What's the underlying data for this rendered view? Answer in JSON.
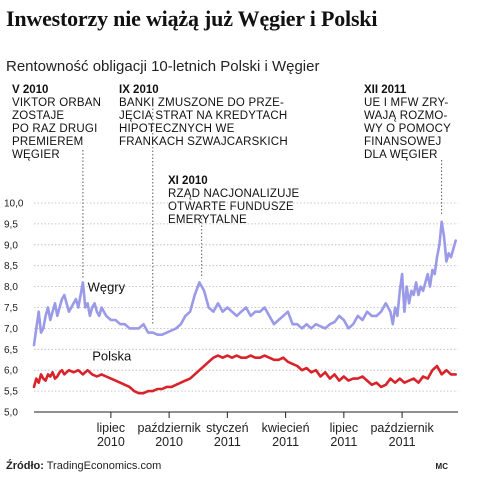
{
  "title": "Inwestorzy nie wiążą już Węgier i Polski",
  "subtitle": "Rentowność obligacji 10-letnich Polski i Węgier",
  "source": {
    "label": "Źródło:",
    "value": "TradingEconomics.com"
  },
  "credit": "MC",
  "annotations": [
    {
      "date": "V 2010",
      "lines": [
        "VIKTOR ORBAN",
        "ZOSTAJE",
        "PO RAZ DRUGI",
        "PREMIEREM",
        "WĘGIER"
      ],
      "x": 2010.38,
      "y": 8.1
    },
    {
      "date": "IX 2010",
      "lines": [
        "BANKI ZMUSZONE DO PRZE-",
        "JĘCIA STRAT NA KREDYTACH",
        "HIPOTECZNYCH WE",
        "FRANKACH SZWAJCARSKICH"
      ],
      "x": 2010.68,
      "y": 7.0
    },
    {
      "date": "XI 2010",
      "lines": [
        "RZĄD NACJONALIZUJE",
        "OTWARTE FUNDUSZE",
        "EMERYTALNE"
      ],
      "x": 2010.89,
      "y": 8.1
    },
    {
      "date": "XII 2011",
      "lines": [
        "UE I MFW ZRY-",
        "WAJĄ ROZMO-",
        "WY O POMOCY",
        "FINANSOWEJ",
        "DLA WĘGIER"
      ],
      "x": 2011.92,
      "y": 9.6
    }
  ],
  "chart_data": {
    "type": "line",
    "title": "Rentowność obligacji 10-letnich Polski i Węgier",
    "ylim": [
      5.0,
      10.0
    ],
    "yticks": [
      "5,0",
      "5,5",
      "6,0",
      "6,5",
      "7,0",
      "7,5",
      "8,0",
      "8,5",
      "9,0",
      "9,5",
      "10,0"
    ],
    "xlim": [
      2010.17,
      2011.99
    ],
    "xticks": [
      {
        "x": 2010.5,
        "label": [
          "lipiec",
          "2010"
        ]
      },
      {
        "x": 2010.75,
        "label": [
          "październik",
          "2010"
        ]
      },
      {
        "x": 2011.0,
        "label": [
          "styczeń",
          "2011"
        ]
      },
      {
        "x": 2011.25,
        "label": [
          "kwiecień",
          "2011"
        ]
      },
      {
        "x": 2011.5,
        "label": [
          "lipiec",
          "2011"
        ]
      },
      {
        "x": 2011.75,
        "label": [
          "październik",
          "2011"
        ]
      }
    ],
    "grid": "horizontal",
    "colors": {
      "hungary": "#9a9ae8",
      "poland": "#d9232a"
    },
    "series": [
      {
        "name": "Węgry",
        "x": [
          2010.17,
          2010.18,
          2010.19,
          2010.2,
          2010.21,
          2010.22,
          2010.23,
          2010.24,
          2010.25,
          2010.26,
          2010.27,
          2010.28,
          2010.29,
          2010.3,
          2010.31,
          2010.32,
          2010.33,
          2010.34,
          2010.35,
          2010.36,
          2010.37,
          2010.38,
          2010.39,
          2010.4,
          2010.41,
          2010.42,
          2010.43,
          2010.44,
          2010.45,
          2010.46,
          2010.47,
          2010.48,
          2010.5,
          2010.52,
          2010.54,
          2010.56,
          2010.58,
          2010.6,
          2010.62,
          2010.64,
          2010.66,
          2010.68,
          2010.7,
          2010.72,
          2010.74,
          2010.76,
          2010.78,
          2010.8,
          2010.82,
          2010.84,
          2010.86,
          2010.88,
          2010.9,
          2010.92,
          2010.94,
          2010.96,
          2010.98,
          2011.0,
          2011.02,
          2011.04,
          2011.06,
          2011.08,
          2011.1,
          2011.12,
          2011.14,
          2011.16,
          2011.18,
          2011.2,
          2011.22,
          2011.24,
          2011.26,
          2011.28,
          2011.3,
          2011.32,
          2011.34,
          2011.36,
          2011.38,
          2011.4,
          2011.42,
          2011.44,
          2011.46,
          2011.48,
          2011.5,
          2011.52,
          2011.54,
          2011.56,
          2011.58,
          2011.6,
          2011.62,
          2011.64,
          2011.66,
          2011.68,
          2011.7,
          2011.71,
          2011.72,
          2011.73,
          2011.74,
          2011.75,
          2011.76,
          2011.77,
          2011.78,
          2011.79,
          2011.8,
          2011.81,
          2011.82,
          2011.83,
          2011.84,
          2011.85,
          2011.86,
          2011.87,
          2011.88,
          2011.89,
          2011.9,
          2011.91,
          2011.92,
          2011.93,
          2011.94,
          2011.95,
          2011.96,
          2011.97,
          2011.98
        ],
        "values": [
          6.6,
          7.0,
          7.4,
          6.9,
          7.0,
          7.3,
          7.5,
          7.2,
          7.4,
          7.6,
          7.3,
          7.5,
          7.7,
          7.8,
          7.6,
          7.4,
          7.5,
          7.6,
          7.7,
          7.5,
          7.8,
          8.1,
          7.5,
          7.6,
          7.3,
          7.5,
          7.6,
          7.4,
          7.3,
          7.5,
          7.4,
          7.3,
          7.2,
          7.2,
          7.1,
          7.1,
          7.0,
          7.0,
          7.0,
          7.1,
          6.9,
          6.9,
          6.85,
          6.85,
          6.9,
          6.95,
          7.0,
          7.1,
          7.3,
          7.4,
          7.8,
          8.1,
          7.9,
          7.5,
          7.4,
          7.6,
          7.4,
          7.5,
          7.4,
          7.3,
          7.4,
          7.5,
          7.3,
          7.4,
          7.4,
          7.5,
          7.3,
          7.1,
          7.2,
          7.3,
          7.4,
          7.1,
          7.1,
          7.0,
          7.1,
          7.0,
          7.1,
          7.05,
          7.0,
          7.1,
          7.15,
          7.3,
          7.2,
          7.0,
          7.1,
          7.3,
          7.2,
          7.4,
          7.3,
          7.3,
          7.4,
          7.6,
          7.4,
          7.1,
          7.5,
          7.3,
          7.9,
          8.3,
          7.4,
          8.0,
          7.6,
          7.9,
          7.8,
          8.1,
          7.8,
          8.0,
          7.9,
          8.1,
          8.3,
          8.0,
          8.4,
          8.3,
          8.7,
          9.0,
          9.55,
          9.2,
          8.6,
          8.8,
          8.7,
          8.9,
          9.1
        ]
      },
      {
        "name": "Polska",
        "x": [
          2010.17,
          2010.18,
          2010.19,
          2010.2,
          2010.21,
          2010.22,
          2010.23,
          2010.24,
          2010.25,
          2010.26,
          2010.27,
          2010.28,
          2010.29,
          2010.3,
          2010.31,
          2010.32,
          2010.34,
          2010.36,
          2010.38,
          2010.4,
          2010.42,
          2010.44,
          2010.46,
          2010.48,
          2010.5,
          2010.52,
          2010.54,
          2010.56,
          2010.58,
          2010.6,
          2010.62,
          2010.64,
          2010.66,
          2010.68,
          2010.7,
          2010.72,
          2010.74,
          2010.76,
          2010.78,
          2010.8,
          2010.82,
          2010.84,
          2010.86,
          2010.88,
          2010.9,
          2010.92,
          2010.94,
          2010.96,
          2010.98,
          2011.0,
          2011.02,
          2011.04,
          2011.06,
          2011.08,
          2011.1,
          2011.12,
          2011.14,
          2011.16,
          2011.18,
          2011.2,
          2011.22,
          2011.24,
          2011.26,
          2011.28,
          2011.3,
          2011.32,
          2011.34,
          2011.36,
          2011.38,
          2011.4,
          2011.42,
          2011.44,
          2011.46,
          2011.48,
          2011.5,
          2011.52,
          2011.54,
          2011.56,
          2011.58,
          2011.6,
          2011.62,
          2011.64,
          2011.66,
          2011.68,
          2011.7,
          2011.72,
          2011.74,
          2011.76,
          2011.78,
          2011.8,
          2011.82,
          2011.84,
          2011.86,
          2011.88,
          2011.9,
          2011.92,
          2011.94,
          2011.96,
          2011.98
        ],
        "values": [
          5.6,
          5.8,
          5.7,
          5.9,
          5.8,
          5.75,
          5.9,
          5.85,
          5.95,
          5.8,
          5.85,
          5.95,
          6.0,
          5.9,
          5.95,
          6.0,
          5.95,
          6.0,
          5.9,
          6.0,
          5.9,
          5.85,
          5.9,
          5.85,
          5.8,
          5.75,
          5.7,
          5.65,
          5.6,
          5.5,
          5.45,
          5.45,
          5.5,
          5.5,
          5.55,
          5.55,
          5.6,
          5.6,
          5.65,
          5.7,
          5.75,
          5.8,
          5.9,
          6.0,
          6.1,
          6.2,
          6.3,
          6.35,
          6.3,
          6.35,
          6.3,
          6.35,
          6.3,
          6.3,
          6.35,
          6.3,
          6.3,
          6.35,
          6.3,
          6.25,
          6.25,
          6.3,
          6.2,
          6.15,
          6.1,
          6.0,
          6.05,
          5.95,
          6.0,
          5.85,
          5.95,
          5.8,
          5.9,
          5.75,
          5.85,
          5.75,
          5.8,
          5.8,
          5.85,
          5.75,
          5.65,
          5.7,
          5.6,
          5.65,
          5.8,
          5.7,
          5.8,
          5.7,
          5.75,
          5.8,
          5.7,
          5.85,
          5.8,
          6.0,
          6.1,
          5.9,
          6.0,
          5.9,
          5.9
        ]
      }
    ]
  }
}
